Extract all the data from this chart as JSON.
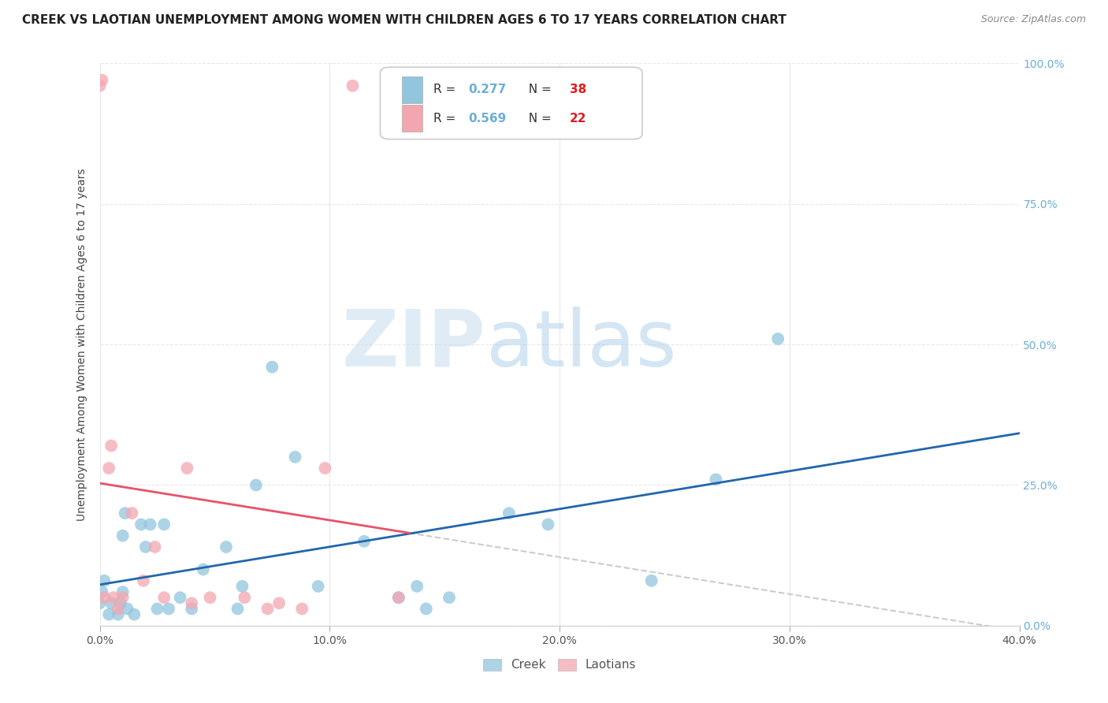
{
  "title": "CREEK VS LAOTIAN UNEMPLOYMENT AMONG WOMEN WITH CHILDREN AGES 6 TO 17 YEARS CORRELATION CHART",
  "source": "Source: ZipAtlas.com",
  "ylabel": "Unemployment Among Women with Children Ages 6 to 17 years",
  "xlim": [
    0.0,
    40.0
  ],
  "ylim": [
    0.0,
    100.0
  ],
  "ytick_values": [
    0.0,
    25.0,
    50.0,
    75.0,
    100.0
  ],
  "xtick_values": [
    0.0,
    10.0,
    20.0,
    30.0,
    40.0
  ],
  "creek_color": "#92c5de",
  "laotian_color": "#f4a6b0",
  "creek_line_color": "#2166ac",
  "laotian_line_color": "#e8536a",
  "laotian_dash_color": "#cccccc",
  "creek_R": 0.277,
  "creek_N": 38,
  "laotian_R": 0.569,
  "laotian_N": 22,
  "watermark_zip": "ZIP",
  "watermark_atlas": "atlas",
  "background_color": "#ffffff",
  "grid_color": "#e8e8e8",
  "creek_scatter_x": [
    0.0,
    0.1,
    0.2,
    0.4,
    0.5,
    0.8,
    0.9,
    1.0,
    1.0,
    1.1,
    1.2,
    1.5,
    1.8,
    2.0,
    2.2,
    2.5,
    2.8,
    3.0,
    3.5,
    4.0,
    4.5,
    5.5,
    6.0,
    6.2,
    6.8,
    7.5,
    8.5,
    9.5,
    11.5,
    13.0,
    13.8,
    14.2,
    15.2,
    17.8,
    19.5,
    24.0,
    26.8,
    29.5
  ],
  "creek_scatter_y": [
    4.0,
    6.0,
    8.0,
    2.0,
    4.0,
    2.0,
    4.0,
    6.0,
    16.0,
    20.0,
    3.0,
    2.0,
    18.0,
    14.0,
    18.0,
    3.0,
    18.0,
    3.0,
    5.0,
    3.0,
    10.0,
    14.0,
    3.0,
    7.0,
    25.0,
    46.0,
    30.0,
    7.0,
    15.0,
    5.0,
    7.0,
    3.0,
    5.0,
    20.0,
    18.0,
    8.0,
    26.0,
    51.0
  ],
  "laotian_scatter_x": [
    0.0,
    0.1,
    0.2,
    0.4,
    0.5,
    0.6,
    0.8,
    1.0,
    1.4,
    1.9,
    2.4,
    2.8,
    3.8,
    4.0,
    4.8,
    6.3,
    7.3,
    7.8,
    8.8,
    9.8,
    11.0,
    13.0
  ],
  "laotian_scatter_y": [
    96.0,
    97.0,
    5.0,
    28.0,
    32.0,
    5.0,
    3.0,
    5.0,
    20.0,
    8.0,
    14.0,
    5.0,
    28.0,
    4.0,
    5.0,
    5.0,
    3.0,
    4.0,
    3.0,
    28.0,
    96.0,
    5.0
  ],
  "title_fontsize": 11,
  "axis_label_fontsize": 10,
  "tick_fontsize": 10,
  "legend_fontsize": 11,
  "watermark_fontsize": 72,
  "right_tick_color": "#6baed6",
  "N_color": "#e31a1c",
  "R_value_color": "#6baed6"
}
